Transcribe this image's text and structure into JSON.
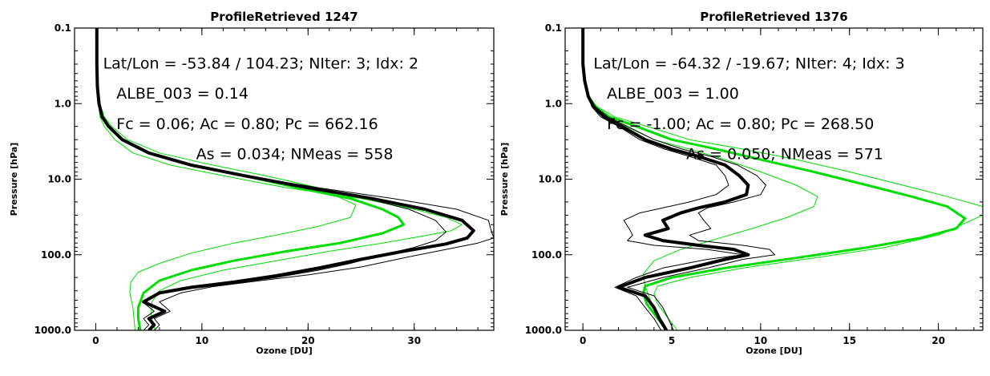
{
  "chart_data": [
    {
      "type": "line",
      "title": "ProfileRetrieved 1247",
      "xlabel": "Ozone [DU]",
      "ylabel": "Pressure [hPa]",
      "xlim": [
        -2,
        37.5
      ],
      "ylim": [
        1000.0,
        0.1
      ],
      "yscale": "log",
      "xticks": [
        0,
        10,
        20,
        30
      ],
      "xtick_labels": [
        "0",
        "10",
        "20",
        "30"
      ],
      "yticks": [
        0.1,
        1.0,
        10.0,
        100.0,
        1000.0
      ],
      "ytick_labels": [
        "0.1",
        "1.0",
        "10.0",
        "100.0",
        "1000.0"
      ],
      "annotations": [
        "Lat/Lon = -53.84 / 104.23; NIter: 3; Idx: 2",
        "ALBE_003 = 0.14",
        "Fc = 0.06; Ac = 0.80; Pc = 662.16",
        "As = 0.034; NMeas = 558"
      ],
      "series": [
        {
          "color": "#00dd00",
          "width": 3,
          "x": [
            0.1,
            0.1,
            0.15,
            0.3,
            0.6,
            1.2,
            2.5,
            5,
            9,
            14,
            19,
            24,
            27,
            28.5,
            29,
            27,
            23,
            18,
            13,
            9,
            6,
            4.5,
            4,
            4,
            4.2
          ],
          "y": [
            0.1,
            0.3,
            0.6,
            1,
            1.5,
            2,
            3,
            4.5,
            6.5,
            9,
            13,
            18,
            25,
            32,
            40,
            52,
            70,
            90,
            120,
            160,
            220,
            320,
            500,
            700,
            1000
          ]
        },
        {
          "color": "#00dd00",
          "width": 1,
          "x": [
            0.1,
            0.1,
            0.2,
            0.4,
            0.8,
            1.5,
            3,
            6,
            11,
            16,
            21,
            24.5,
            24,
            21,
            17,
            13,
            9,
            6,
            4,
            3.3,
            3.2,
            3.5,
            3.7
          ],
          "y": [
            0.1,
            0.3,
            0.6,
            1,
            1.5,
            2,
            3,
            4.5,
            6.5,
            9,
            13,
            22,
            32,
            42,
            55,
            70,
            95,
            130,
            170,
            230,
            320,
            500,
            1000
          ]
        },
        {
          "color": "#00dd00",
          "width": 1,
          "x": [
            0.1,
            0.1,
            0.15,
            0.25,
            0.4,
            0.8,
            1.8,
            3.5,
            7,
            12,
            18,
            25,
            30,
            33,
            34.5,
            33.5,
            31,
            27,
            22,
            17,
            12,
            8,
            6,
            5.3,
            5.2,
            5.6
          ],
          "y": [
            0.1,
            0.3,
            0.6,
            1,
            1.5,
            2,
            3,
            4.5,
            6.5,
            9,
            13,
            18,
            25,
            32,
            40,
            48,
            56,
            70,
            90,
            120,
            160,
            220,
            300,
            420,
            650,
            1000
          ]
        },
        {
          "color": "#000000",
          "width": 4,
          "x": [
            0.1,
            0.1,
            0.15,
            0.3,
            0.6,
            1.2,
            2.5,
            5,
            9,
            14,
            20,
            26,
            31,
            34.5,
            35.6,
            35,
            33,
            29,
            25,
            21,
            17,
            13,
            9,
            6,
            4.5,
            6.5,
            5,
            5.5,
            5
          ],
          "y": [
            0.1,
            0.3,
            0.6,
            1,
            1.5,
            2,
            3,
            4.5,
            6.5,
            9,
            13,
            18,
            25,
            35,
            48,
            60,
            72,
            90,
            115,
            150,
            190,
            230,
            270,
            320,
            420,
            560,
            700,
            850,
            1000
          ]
        },
        {
          "color": "#000000",
          "width": 1,
          "x": [
            0.1,
            0.1,
            0.15,
            0.3,
            0.6,
            1.2,
            2.5,
            5,
            9,
            14,
            20,
            25.5,
            29.5,
            32,
            33,
            32,
            30,
            27,
            24,
            21,
            17,
            13,
            9,
            6,
            4.5,
            5.5,
            4.5,
            5,
            4.5
          ],
          "y": [
            0.1,
            0.3,
            0.6,
            1,
            1.5,
            2,
            3,
            4.5,
            6.5,
            9,
            13,
            18,
            25,
            35,
            50,
            65,
            80,
            100,
            130,
            160,
            200,
            240,
            280,
            330,
            430,
            560,
            700,
            850,
            1000
          ]
        },
        {
          "color": "#000000",
          "width": 1,
          "x": [
            0.1,
            0.1,
            0.15,
            0.3,
            0.6,
            1.2,
            2.5,
            5,
            9,
            14,
            21,
            28,
            34,
            37,
            37.2,
            37.5,
            36,
            33,
            29,
            25,
            20,
            15,
            11,
            8,
            6,
            7,
            5.5,
            6,
            5.5
          ],
          "y": [
            0.1,
            0.3,
            0.6,
            1,
            1.5,
            2,
            3,
            4.5,
            6.5,
            9,
            13,
            18,
            25,
            35,
            45,
            60,
            70,
            85,
            110,
            145,
            185,
            225,
            265,
            320,
            420,
            560,
            700,
            850,
            1000
          ]
        }
      ]
    },
    {
      "type": "line",
      "title": "ProfileRetrieved 1376",
      "xlabel": "Ozone [DU]",
      "ylabel": "Pressure [hPa]",
      "xlim": [
        -1,
        22.5
      ],
      "ylim": [
        1000.0,
        0.1
      ],
      "yscale": "log",
      "xticks": [
        0,
        5,
        10,
        15,
        20
      ],
      "xtick_labels": [
        "0",
        "5",
        "10",
        "15",
        "20"
      ],
      "yticks": [
        0.1,
        1.0,
        10.0,
        100.0,
        1000.0
      ],
      "ytick_labels": [
        "0.1",
        "1.0",
        "10.0",
        "100.0",
        "1000.0"
      ],
      "annotations": [
        "Lat/Lon = -64.32 / -19.67; NIter: 4; Idx: 3",
        "ALBE_003 = 1.00",
        "Fc = -1.00; Ac = 0.80; Pc = 268.50",
        "As = 0.050; NMeas = 571"
      ],
      "series": [
        {
          "color": "#00dd00",
          "width": 3,
          "x": [
            0,
            0,
            0.1,
            0.3,
            0.7,
            1.5,
            3,
            5,
            7.5,
            10,
            13,
            16,
            18.5,
            20.5,
            21.5,
            21,
            19,
            16,
            12,
            8,
            5,
            3.5,
            3.4,
            3.6,
            4,
            4.4,
            4.7
          ],
          "y": [
            0.1,
            0.3,
            0.5,
            0.8,
            1.1,
            1.5,
            2,
            3,
            4,
            5.5,
            8,
            12,
            17,
            23,
            33,
            45,
            60,
            80,
            110,
            150,
            200,
            260,
            330,
            450,
            600,
            800,
            1000
          ]
        },
        {
          "color": "#00dd00",
          "width": 1,
          "x": [
            0,
            0,
            0.1,
            0.3,
            0.6,
            1.2,
            2.4,
            4,
            6,
            8,
            10,
            12,
            13.2,
            13,
            11.5,
            9.5,
            7.5,
            5.5,
            4,
            3.4,
            3.5,
            3.8,
            4.2,
            4.6
          ],
          "y": [
            0.1,
            0.3,
            0.5,
            0.8,
            1.1,
            1.5,
            2,
            3,
            4,
            5.5,
            8,
            12,
            17,
            23,
            32,
            45,
            62,
            85,
            120,
            180,
            260,
            400,
            650,
            1000
          ]
        },
        {
          "color": "#00dd00",
          "width": 1,
          "x": [
            0,
            0,
            0.1,
            0.35,
            0.8,
            1.8,
            3.6,
            6,
            9,
            12,
            15,
            18,
            20.5,
            22.5,
            22.5,
            20,
            17,
            13,
            9,
            6,
            4.2,
            4,
            4.2,
            4.6,
            5,
            5.3
          ],
          "y": [
            0.1,
            0.3,
            0.5,
            0.8,
            1.1,
            1.5,
            2,
            3,
            4,
            5.5,
            8,
            12,
            17,
            23,
            30,
            55,
            80,
            110,
            150,
            200,
            260,
            330,
            450,
            600,
            800,
            1000
          ]
        },
        {
          "color": "#000000",
          "width": 4,
          "x": [
            0,
            0,
            0.1,
            0.3,
            0.6,
            1.2,
            2.2,
            3.5,
            5,
            6.5,
            8,
            8.8,
            9.3,
            9.2,
            8,
            6.5,
            5.5,
            4.5,
            4.8,
            3.5,
            4.5,
            6.5,
            8.5,
            9.3,
            8,
            6,
            3.5,
            2,
            3.5,
            4,
            4.3,
            4.7
          ],
          "y": [
            0.1,
            0.3,
            0.5,
            0.8,
            1.1,
            1.5,
            2,
            3,
            4,
            5,
            6.5,
            9,
            12,
            16,
            20,
            24,
            28,
            35,
            45,
            55,
            65,
            75,
            85,
            100,
            115,
            150,
            200,
            270,
            350,
            500,
            700,
            1000
          ]
        },
        {
          "color": "#000000",
          "width": 1,
          "x": [
            0,
            0,
            0.1,
            0.3,
            0.5,
            1,
            2,
            3.2,
            4.6,
            6,
            7.5,
            8,
            8.2,
            7.5,
            6,
            4.5,
            3.2,
            2.3,
            2.6,
            2.8,
            2.5,
            4,
            7,
            9,
            7,
            4.5,
            3,
            1.8,
            3,
            3.5,
            4,
            4.4
          ],
          "y": [
            0.1,
            0.3,
            0.5,
            0.8,
            1.1,
            1.5,
            2,
            3,
            4,
            5,
            6.5,
            9,
            12,
            16,
            20,
            24,
            28,
            35,
            45,
            55,
            65,
            75,
            85,
            100,
            115,
            150,
            200,
            270,
            350,
            500,
            700,
            1000
          ]
        },
        {
          "color": "#000000",
          "width": 1,
          "x": [
            0,
            0,
            0.15,
            0.35,
            0.7,
            1.4,
            2.5,
            4,
            5.6,
            7.2,
            8.7,
            9.8,
            10.3,
            10,
            8.5,
            7,
            6.5,
            6.8,
            7.2,
            6,
            6.5,
            9,
            10.5,
            10.8,
            9,
            7,
            4.5,
            2.5,
            4,
            4.5,
            4.8,
            5.1
          ],
          "y": [
            0.1,
            0.3,
            0.5,
            0.8,
            1.1,
            1.5,
            2,
            3,
            4,
            5,
            6.5,
            9,
            12,
            16,
            20,
            24,
            28,
            35,
            45,
            55,
            65,
            75,
            85,
            100,
            115,
            150,
            200,
            270,
            350,
            500,
            700,
            1000
          ]
        }
      ]
    }
  ]
}
